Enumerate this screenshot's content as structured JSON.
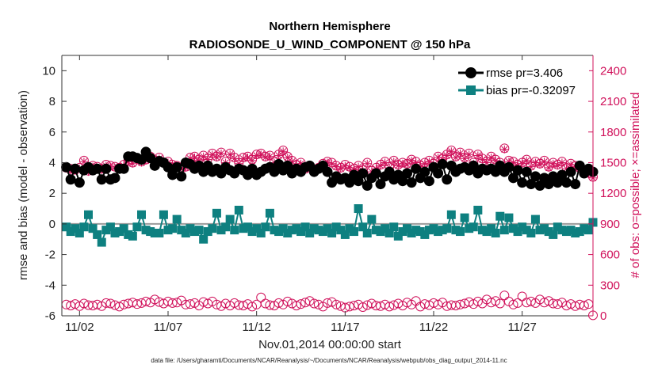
{
  "chart_data": {
    "type": "line",
    "title": "Northern Hemisphere",
    "subtitle": "RADIOSONDE_U_WIND_COMPONENT @ 150 hPa",
    "xlabel": "Nov.01,2014 00:00:00 start",
    "ylabel": "rmse and bias (model - observation)",
    "ylabel_right": "# of obs: o=possible; ×=assimilated",
    "footnote": "data file: /Users/gharamti/Documents/NCAR/Reanalysis/~/Documents/NCAR/Reanalysis/webpub/obs_diag_output_2014-11.nc",
    "xlim": [
      0.5,
      30.5
    ],
    "ylim": [
      -6,
      11
    ],
    "ylim_right": [
      0,
      2550
    ],
    "x_ticks": [
      1.5,
      6.5,
      11.5,
      16.5,
      21.5,
      26.5
    ],
    "x_tick_labels": [
      "11/02",
      "11/07",
      "11/12",
      "11/17",
      "11/22",
      "11/27"
    ],
    "y_ticks": [
      -6,
      -4,
      -2,
      0,
      2,
      4,
      6,
      8,
      10
    ],
    "y_tick_labels": [
      "-6",
      "-4",
      "-2",
      "0",
      "2",
      "4",
      "6",
      "8",
      "10"
    ],
    "y_right_ticks": [
      0,
      300,
      600,
      900,
      1200,
      1500,
      1800,
      2100,
      2400
    ],
    "y_right_tick_labels": [
      "0",
      "300",
      "600",
      "900",
      "1200",
      "1500",
      "1800",
      "2100",
      "2400"
    ],
    "zero_line": 0,
    "series": [
      {
        "name": "rmse",
        "legend": "rmse pr=3.406",
        "color": "#000000",
        "marker": "circle",
        "x_start": 0.75,
        "x_step": 0.25,
        "values": [
          3.7,
          2.9,
          3.6,
          2.7,
          3.5,
          3.7,
          3.5,
          3.6,
          2.9,
          3.6,
          2.9,
          3.0,
          3.6,
          3.6,
          4.4,
          4.4,
          4.3,
          4.2,
          4.7,
          4.3,
          3.8,
          4.1,
          4.0,
          3.7,
          3.2,
          3.7,
          3.1,
          4.0,
          3.9,
          3.6,
          3.8,
          3.4,
          3.8,
          3.4,
          3.6,
          3.3,
          3.7,
          3.5,
          3.3,
          3.6,
          3.5,
          3.2,
          3.6,
          3.2,
          3.4,
          3.6,
          3.7,
          3.4,
          3.9,
          3.5,
          3.8,
          3.3,
          3.6,
          3.4,
          3.7,
          3.8,
          3.4,
          3.6,
          3.8,
          3.4,
          2.7,
          3.1,
          2.9,
          3.0,
          2.7,
          3.2,
          2.8,
          3.3,
          2.5,
          3.0,
          3.3,
          2.6,
          3.1,
          3.4,
          2.9,
          3.2,
          2.8,
          3.3,
          2.7,
          3.6,
          3.0,
          3.4,
          2.8,
          3.7,
          3.3,
          3.9,
          2.9,
          3.8,
          3.4,
          3.6,
          3.7,
          3.5,
          3.8,
          3.3,
          3.6,
          3.5,
          3.6,
          3.4,
          3.8,
          3.4,
          3.7,
          3.0,
          3.5,
          2.7,
          3.4,
          2.6,
          3.1,
          2.5,
          3.0,
          2.6,
          3.1,
          2.7,
          3.2,
          2.7,
          3.4,
          2.6,
          3.8,
          3.3,
          3.6,
          3.4
        ]
      },
      {
        "name": "bias",
        "legend": "bias pr=-0.32097",
        "color": "#0e8080",
        "marker": "square",
        "x_start": 0.75,
        "x_step": 0.25,
        "values": [
          -0.2,
          -0.5,
          -0.3,
          -0.6,
          -0.2,
          0.6,
          -0.3,
          -0.7,
          -1.2,
          -0.4,
          -0.2,
          -0.6,
          -0.5,
          -0.3,
          -0.7,
          -0.8,
          -0.2,
          0.6,
          -0.4,
          -0.5,
          -0.6,
          -0.6,
          0.6,
          -0.4,
          -0.3,
          0.3,
          -0.4,
          -0.6,
          -0.3,
          -0.5,
          -0.4,
          -1.0,
          -0.5,
          -0.3,
          0.7,
          -0.4,
          -0.2,
          0.3,
          -0.4,
          0.9,
          -0.3,
          -0.2,
          -0.5,
          -0.3,
          -0.6,
          -0.2,
          0.7,
          -0.4,
          -0.5,
          -0.3,
          -0.6,
          -0.4,
          -0.3,
          -0.5,
          -0.2,
          -0.6,
          -0.3,
          -0.4,
          -0.5,
          -0.3,
          -0.6,
          -0.2,
          -0.4,
          -0.7,
          -0.3,
          -0.5,
          1.0,
          -0.2,
          -0.6,
          0.3,
          -0.4,
          -0.5,
          -0.3,
          -0.6,
          -0.2,
          -0.8,
          -0.5,
          -0.3,
          -0.6,
          -0.4,
          -0.5,
          -0.7,
          -0.4,
          -0.3,
          -0.5,
          -0.4,
          -0.3,
          0.6,
          -0.4,
          -0.5,
          0.4,
          -0.3,
          -0.2,
          0.9,
          -0.4,
          -0.5,
          -0.3,
          -0.6,
          0.5,
          -0.4,
          0.4,
          -0.3,
          -0.5,
          -0.2,
          -0.4,
          -0.6,
          0.3,
          -0.4,
          -0.3,
          -0.5,
          -0.7,
          -0.2,
          -0.4,
          -0.5,
          -0.4,
          -0.6,
          -0.5,
          -0.3,
          -0.4,
          0.1
        ]
      },
      {
        "name": "obs possible",
        "axis": "right",
        "color": "#d0105a",
        "marker": "circle-open",
        "x_start": 0.75,
        "x_step": 0.25,
        "values": [
          1450,
          1440,
          1430,
          1450,
          1520,
          1420,
          1470,
          1460,
          1440,
          1480,
          1470,
          1460,
          1450,
          1480,
          1520,
          1500,
          1540,
          1510,
          1530,
          1560,
          1520,
          1550,
          1500,
          1510,
          1480,
          1470,
          1450,
          1460,
          1550,
          1560,
          1530,
          1570,
          1540,
          1590,
          1560,
          1600,
          1510,
          1590,
          1550,
          1500,
          1550,
          1560,
          1530,
          1580,
          1590,
          1560,
          1570,
          1510,
          1580,
          1620,
          1560,
          1520,
          1480,
          1500,
          1440,
          1460,
          1430,
          1450,
          1490,
          1510,
          1500,
          1470,
          1450,
          1480,
          1460,
          1440,
          1470,
          1430,
          1500,
          1420,
          1450,
          1480,
          1510,
          1460,
          1520,
          1480,
          1500,
          1490,
          1530,
          1510,
          1470,
          1500,
          1520,
          1490,
          1560,
          1540,
          1580,
          1620,
          1560,
          1600,
          1550,
          1590,
          1500,
          1580,
          1540,
          1510,
          1560,
          1530,
          1500,
          1640,
          1520,
          1510,
          1480,
          1500,
          1530,
          1470,
          1510,
          1490,
          1520,
          1460,
          1500,
          1480,
          1510,
          1450,
          1490,
          1470,
          1450,
          1430,
          1400,
          1360
        ]
      },
      {
        "name": "obs assimilated",
        "axis": "right",
        "color": "#d0105a",
        "marker": "x",
        "x_start": 0.75,
        "x_step": 0.25,
        "values": [
          1440,
          1420,
          1420,
          1440,
          1510,
          1410,
          1460,
          1450,
          1430,
          1470,
          1460,
          1450,
          1440,
          1470,
          1510,
          1490,
          1530,
          1500,
          1520,
          1550,
          1510,
          1540,
          1490,
          1500,
          1470,
          1460,
          1440,
          1450,
          1540,
          1550,
          1520,
          1560,
          1530,
          1580,
          1550,
          1590,
          1500,
          1580,
          1540,
          1490,
          1540,
          1550,
          1520,
          1570,
          1580,
          1550,
          1560,
          1500,
          1570,
          1610,
          1550,
          1510,
          1470,
          1490,
          1430,
          1450,
          1420,
          1440,
          1480,
          1500,
          1490,
          1460,
          1440,
          1470,
          1450,
          1430,
          1460,
          1420,
          1490,
          1410,
          1440,
          1470,
          1500,
          1450,
          1510,
          1470,
          1490,
          1480,
          1520,
          1500,
          1460,
          1490,
          1510,
          1480,
          1550,
          1530,
          1570,
          1610,
          1550,
          1590,
          1540,
          1580,
          1490,
          1570,
          1530,
          1500,
          1550,
          1520,
          1490,
          1630,
          1510,
          1500,
          1470,
          1490,
          1520,
          1460,
          1500,
          1480,
          1510,
          1450,
          1490,
          1470,
          1500,
          1440,
          1480,
          1460,
          1440,
          1420,
          1390,
          1350
        ]
      },
      {
        "name": "obs possible (low)",
        "axis": "right",
        "color": "#d0105a",
        "marker": "circle-open",
        "x_start": 0.75,
        "x_step": 0.25,
        "values": [
          110,
          100,
          115,
          95,
          120,
          105,
          100,
          110,
          95,
          125,
          120,
          105,
          90,
          110,
          120,
          130,
          115,
          125,
          140,
          130,
          160,
          135,
          120,
          140,
          125,
          130,
          150,
          110,
          115,
          125,
          100,
          135,
          120,
          140,
          110,
          95,
          120,
          100,
          125,
          105,
          100,
          115,
          90,
          110,
          180,
          120,
          105,
          100,
          125,
          110,
          140,
          120,
          100,
          115,
          130,
          145,
          120,
          110,
          90,
          125,
          135,
          110,
          95,
          80,
          90,
          100,
          110,
          85,
          105,
          120,
          100,
          95,
          110,
          90,
          105,
          120,
          100,
          130,
          110,
          145,
          90,
          115,
          105,
          125,
          110,
          130,
          95,
          105,
          100,
          110,
          120,
          135,
          115,
          140,
          120,
          160,
          130,
          145,
          120,
          200,
          140,
          110,
          125,
          190,
          130,
          140,
          125,
          160,
          130,
          145,
          120,
          115,
          130,
          100,
          115,
          95,
          110,
          100,
          115,
          5
        ]
      }
    ]
  }
}
